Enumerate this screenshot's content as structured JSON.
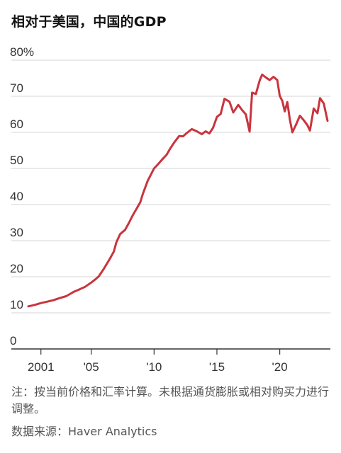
{
  "title": "相对于美国，中国的GDP",
  "chart_data": {
    "type": "line",
    "title": "相对于美国，中国的GDP",
    "xlabel": "",
    "ylabel": "",
    "ylim": [
      0,
      80
    ],
    "xlim": [
      2000.0,
      2023.8
    ],
    "y_ticks": [
      0,
      10,
      20,
      30,
      40,
      50,
      60,
      70,
      80
    ],
    "y_tick_labels": [
      "0",
      "10",
      "20",
      "30",
      "40",
      "50",
      "60",
      "70",
      "80%"
    ],
    "x_ticks": [
      2001,
      2005,
      2010,
      2015,
      2020
    ],
    "x_tick_labels": [
      "2001",
      "'05",
      "'10",
      "'15",
      "'20"
    ],
    "grid": true,
    "line_color": "#c9343d",
    "series": [
      {
        "x": [
          2000.0,
          2000.5,
          2001.0,
          2001.5,
          2002.0,
          2002.5,
          2003.0,
          2003.3,
          2003.6,
          2004.0,
          2004.5,
          2005.0,
          2005.3,
          2005.6,
          2006.0,
          2006.5,
          2006.8,
          2007.0,
          2007.3,
          2007.7,
          2008.0,
          2008.3,
          2008.6,
          2008.9,
          2009.1,
          2009.5,
          2010.0,
          2010.3,
          2010.6,
          2011.0,
          2011.3,
          2011.6,
          2012.0,
          2012.3,
          2012.6,
          2013.0,
          2013.4,
          2013.8,
          2014.1,
          2014.4,
          2014.7,
          2015.0,
          2015.3,
          2015.6,
          2016.0,
          2016.3,
          2016.7,
          2017.0,
          2017.3,
          2017.6,
          2017.8,
          2018.1,
          2018.4,
          2018.6,
          2018.9,
          2019.2,
          2019.5,
          2019.8,
          2020.0,
          2020.2,
          2020.4,
          2020.6,
          2020.8,
          2021.0,
          2021.3,
          2021.6,
          2021.9,
          2022.2,
          2022.4,
          2022.7,
          2023.0,
          2023.2,
          2023.5,
          2023.8
        ],
        "values": [
          11.8,
          12.2,
          12.7,
          13.1,
          13.5,
          14.1,
          14.6,
          15.2,
          15.8,
          16.4,
          17.2,
          18.4,
          19.2,
          20.1,
          22.2,
          25.1,
          27.0,
          29.5,
          31.8,
          33.0,
          34.9,
          37.0,
          38.8,
          40.6,
          42.9,
          46.6,
          50.0,
          51.1,
          52.3,
          53.8,
          55.6,
          57.2,
          59.0,
          58.9,
          59.8,
          60.9,
          60.3,
          59.5,
          60.3,
          59.7,
          61.3,
          64.3,
          65.1,
          69.3,
          68.5,
          65.5,
          67.6,
          66.2,
          65.0,
          60.2,
          71.0,
          70.6,
          74.4,
          76.0,
          75.2,
          74.5,
          75.4,
          74.5,
          70.1,
          68.7,
          65.8,
          68.4,
          63.6,
          60.0,
          62.2,
          64.6,
          63.4,
          62.0,
          60.5,
          66.6,
          65.3,
          69.5,
          68.0,
          63.2
        ]
      }
    ]
  },
  "note": "注：按当前价格和汇率计算。未根据通货膨胀或相对购买力进行调整。",
  "source": "数据来源：Haver Analytics"
}
